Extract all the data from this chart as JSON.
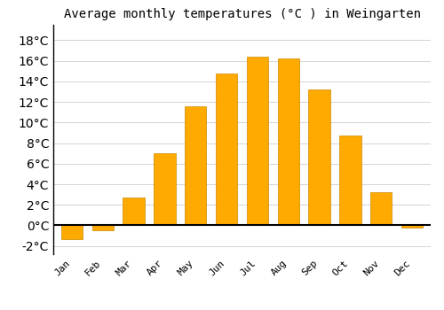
{
  "title": "Average monthly temperatures (°C ) in Weingarten",
  "months": [
    "Jan",
    "Feb",
    "Mar",
    "Apr",
    "May",
    "Jun",
    "Jul",
    "Aug",
    "Sep",
    "Oct",
    "Nov",
    "Dec"
  ],
  "temperatures": [
    -1.3,
    -0.5,
    2.7,
    7.0,
    11.6,
    14.8,
    16.4,
    16.2,
    13.2,
    8.7,
    3.2,
    -0.2
  ],
  "bar_color": "#FFAA00",
  "bar_edge_color": "#CC8800",
  "background_color": "#FFFFFF",
  "grid_color": "#CCCCCC",
  "ylim": [
    -2.8,
    19.5
  ],
  "yticks": [
    -2,
    0,
    2,
    4,
    6,
    8,
    10,
    12,
    14,
    16,
    18
  ],
  "ytick_labels": [
    "-2°C",
    "0°C",
    "2°C",
    "4°C",
    "6°C",
    "8°C",
    "10°C",
    "12°C",
    "14°C",
    "16°C",
    "18°C"
  ],
  "title_fontsize": 10,
  "tick_fontsize": 8,
  "zero_line_color": "#000000",
  "left_spine_color": "#000000",
  "figsize": [
    5.0,
    3.5
  ],
  "dpi": 100
}
